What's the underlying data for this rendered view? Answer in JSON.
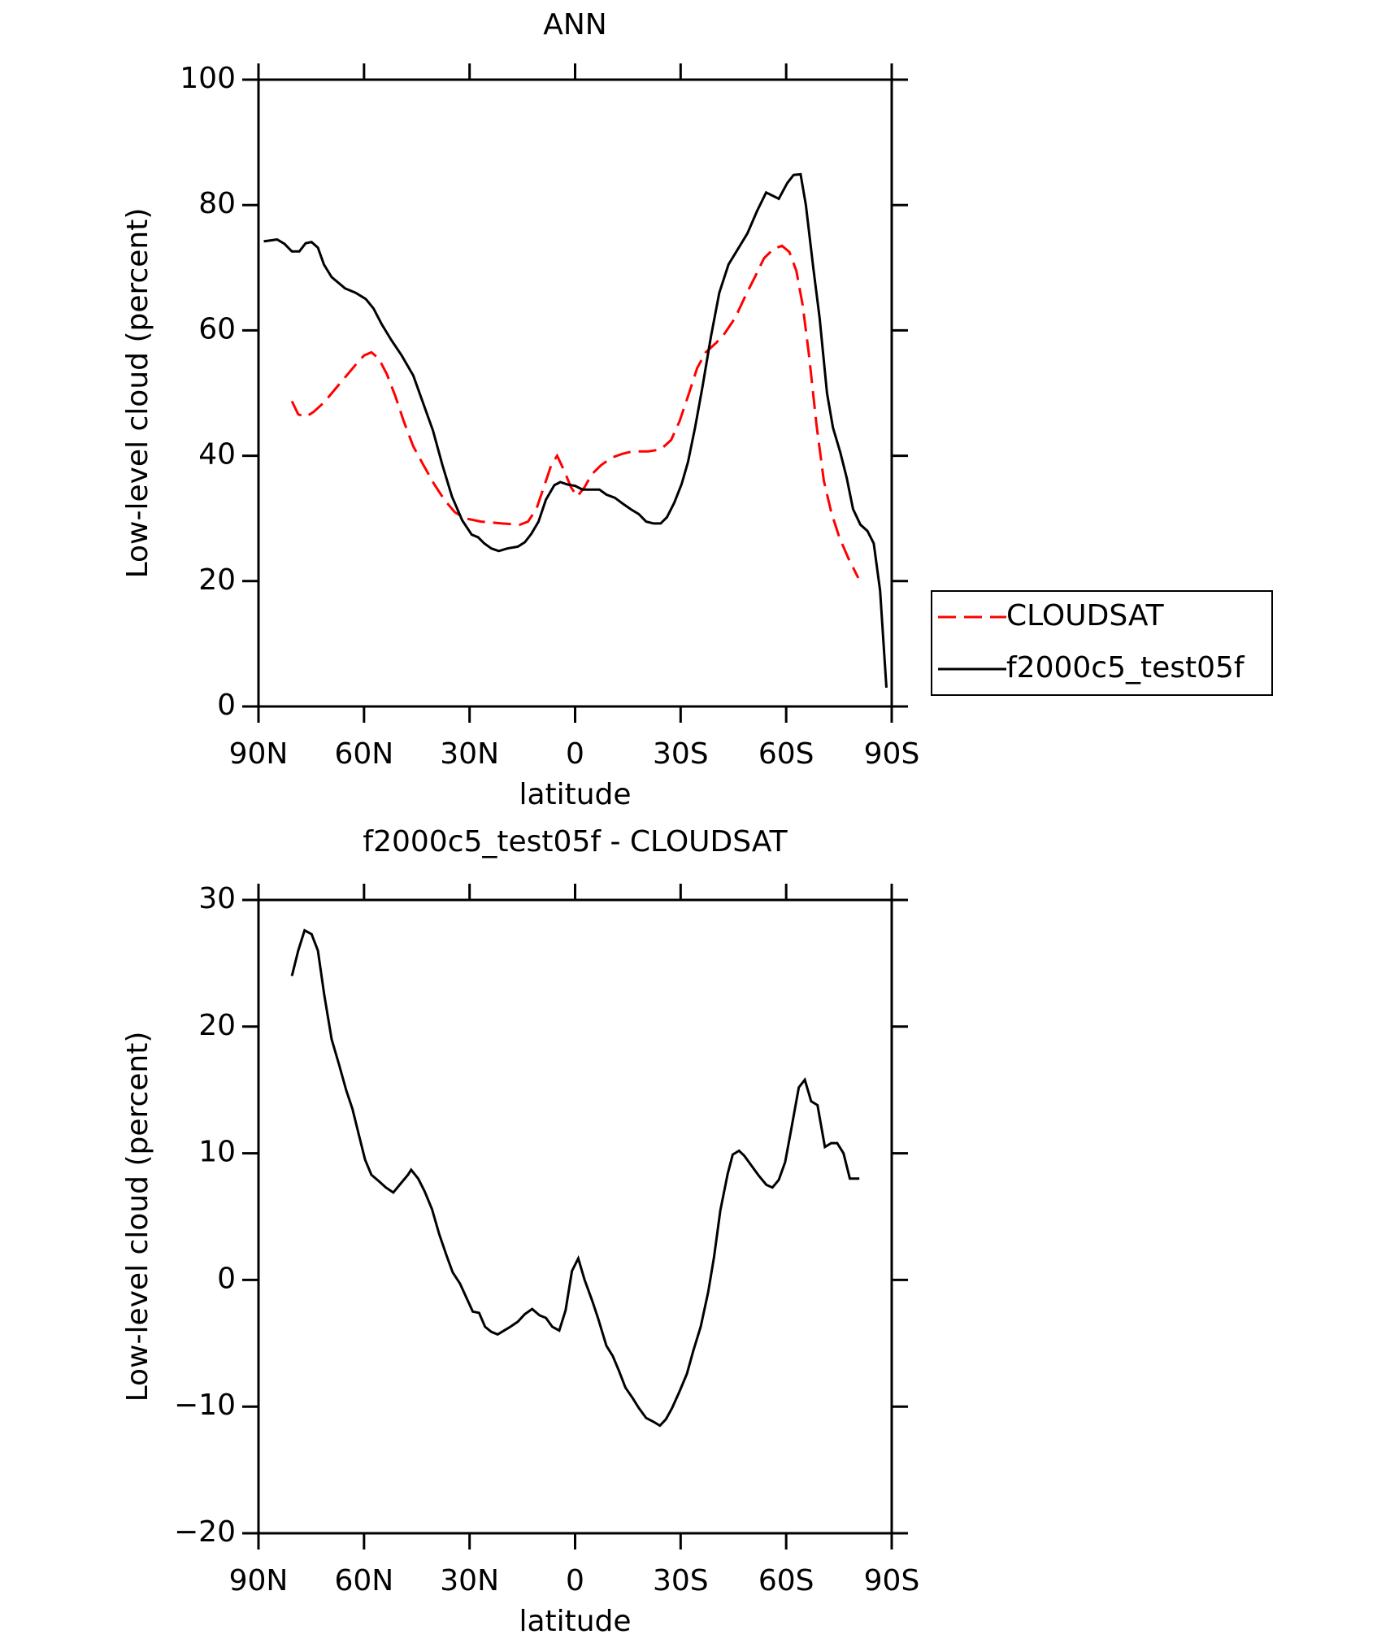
{
  "chart_data": [
    {
      "type": "line",
      "title": "ANN",
      "x_label": "latitude",
      "y_label": "Low-level cloud (percent)",
      "xlim": [
        90,
        -90
      ],
      "ylim": [
        0,
        100
      ],
      "xticks": [
        {
          "value": 90,
          "label": "90N"
        },
        {
          "value": 60,
          "label": "60N"
        },
        {
          "value": 30,
          "label": "30N"
        },
        0,
        {
          "value": -30,
          "label": "30S"
        },
        {
          "value": -60,
          "label": "60S"
        },
        {
          "value": -90,
          "label": "90S"
        }
      ],
      "yticks": [
        0,
        20,
        40,
        60,
        80,
        100
      ],
      "legend": "right",
      "series": [
        {
          "name": "CLOUDSAT",
          "color": "#ff0000",
          "dash": true,
          "x": [
            80.5,
            78.7,
            76.6,
            74.3,
            71.4,
            68.4,
            65.4,
            62.4,
            60,
            57.9,
            55.8,
            53.5,
            51.1,
            48.7,
            46,
            43.1,
            40.1,
            37.2,
            34.2,
            31.2,
            26.7,
            20.8,
            15.7,
            13.4,
            11,
            8.9,
            6.8,
            5.1,
            3,
            1.2,
            -0.6,
            -2.7,
            -4.7,
            -7.4,
            -10.4,
            -13.4,
            -16.3,
            -20.8,
            -24.3,
            -27.3,
            -29.7,
            -32.1,
            -34.7,
            -37.1,
            -40.1,
            -42.5,
            -45.5,
            -48.4,
            -51.1,
            -53.7,
            -56.4,
            -58.8,
            -60.9,
            -62.9,
            -64.7,
            -66.5,
            -68.6,
            -70.7,
            -72.8,
            -75.1,
            -77.8,
            -80.5
          ],
          "values": [
            48.7,
            46.6,
            46.2,
            47,
            48.5,
            50.5,
            52.5,
            54.5,
            56,
            56.5,
            55.5,
            53,
            49.5,
            45.5,
            41.5,
            38.5,
            35.5,
            33,
            31,
            30,
            29.5,
            29.2,
            29,
            29.5,
            31.5,
            35,
            38.5,
            40,
            37.5,
            35,
            33.5,
            35,
            37,
            38.5,
            39.7,
            40.3,
            40.7,
            40.7,
            41,
            42.5,
            45.5,
            49.5,
            54,
            56.5,
            58,
            59.5,
            62,
            65.5,
            68.5,
            71.5,
            73,
            73.5,
            72.5,
            69.5,
            64,
            56,
            45,
            36,
            31,
            27,
            23.5,
            20.5
          ]
        },
        {
          "name": "f2000c5_test05f",
          "color": "#000000",
          "dash": false,
          "x": [
            88.5,
            84.7,
            82.6,
            80.5,
            78.4,
            76.6,
            74.9,
            73.1,
            71.4,
            69.2,
            65.4,
            62.4,
            59.5,
            57.3,
            55,
            52.3,
            49.3,
            46,
            43.4,
            40.4,
            37.7,
            35,
            32.1,
            29.4,
            27.6,
            25.8,
            23.8,
            21.7,
            19.3,
            16.3,
            14.3,
            12.5,
            10.4,
            8.3,
            5.9,
            4.2,
            2.1,
            0,
            -2.1,
            -4.5,
            -6.9,
            -8.9,
            -11.3,
            -13.7,
            -16,
            -18.1,
            -20.2,
            -22.3,
            -24.3,
            -26.1,
            -28.2,
            -30.3,
            -32.1,
            -34.1,
            -36.2,
            -38.6,
            -41,
            -43.6,
            -46.3,
            -49,
            -51.7,
            -54.3,
            -57.9,
            -60.3,
            -62.1,
            -64.1,
            -65.6,
            -67.7,
            -69.5,
            -71.6,
            -73.3,
            -75.4,
            -77.2,
            -79,
            -81.1,
            -83.1,
            -84.9,
            -86.7,
            -88.5
          ],
          "values": [
            74.2,
            74.5,
            73.8,
            72.6,
            72.6,
            73.9,
            74.1,
            73.2,
            70.5,
            68.5,
            66.7,
            66,
            65,
            63.5,
            61,
            58.5,
            56,
            52.8,
            48.7,
            44,
            38.5,
            33.5,
            29.7,
            27.4,
            27,
            26,
            25.2,
            24.8,
            25.2,
            25.5,
            26.2,
            27.5,
            29.5,
            33,
            35.3,
            35.8,
            35.4,
            35.2,
            34.6,
            34.6,
            34.6,
            33.8,
            33.3,
            32.3,
            31.4,
            30.7,
            29.5,
            29.2,
            29.2,
            30.2,
            32.5,
            35.5,
            39,
            44.5,
            51,
            59,
            66,
            70.5,
            73,
            75.5,
            79,
            82,
            81,
            83.5,
            84.8,
            84.9,
            80,
            70,
            62,
            50,
            44.5,
            40.5,
            36.5,
            31.5,
            29,
            28,
            26,
            18.5,
            3
          ]
        }
      ]
    },
    {
      "type": "line",
      "title": "f2000c5_test05f - CLOUDSAT",
      "x_label": "latitude",
      "y_label": "Low-level cloud (percent)",
      "xlim": [
        90,
        -90
      ],
      "ylim": [
        -20,
        30
      ],
      "xticks": [
        {
          "value": 90,
          "label": "90N"
        },
        {
          "value": 60,
          "label": "60N"
        },
        {
          "value": 30,
          "label": "30N"
        },
        0,
        {
          "value": -30,
          "label": "30S"
        },
        {
          "value": -60,
          "label": "60S"
        },
        {
          "value": -90,
          "label": "90S"
        }
      ],
      "yticks": [
        {
          "value": -20,
          "label": "−20"
        },
        {
          "value": -10,
          "label": "−10"
        },
        0,
        10,
        20,
        30
      ],
      "series": [
        {
          "color": "#000000",
          "dash": false,
          "x": [
            80.5,
            78.7,
            76.9,
            74.9,
            73.1,
            71.3,
            69.2,
            67.1,
            65.1,
            63.3,
            61.5,
            59.7,
            57.9,
            55.8,
            53.8,
            51.7,
            49.6,
            47.5,
            46.6,
            44.6,
            42.8,
            40.7,
            38.6,
            36.5,
            34.8,
            32.7,
            30.9,
            29.1,
            27.3,
            25.6,
            23.8,
            22,
            20.2,
            18.4,
            16.3,
            14.3,
            12.2,
            10.1,
            8.3,
            6.5,
            4.5,
            2.7,
            0.9,
            -0.9,
            -2.7,
            -4.8,
            -6.5,
            -8.9,
            -10.7,
            -12.5,
            -14.3,
            -16.3,
            -18.1,
            -20.2,
            -22.3,
            -24.1,
            -25.8,
            -27.6,
            -29.7,
            -31.8,
            -33.6,
            -35.7,
            -37.8,
            -39.5,
            -41.3,
            -43.4,
            -44.8,
            -46.6,
            -48.1,
            -50.2,
            -52.3,
            -54.4,
            -56.1,
            -57.9,
            -59.7,
            -61.5,
            -63.6,
            -65.3,
            -67.1,
            -68.9,
            -71,
            -72.8,
            -74.5,
            -76.3,
            -78.1,
            -80.8
          ],
          "values": [
            24,
            26,
            27.6,
            27.3,
            26,
            22.5,
            19,
            17,
            15,
            13.5,
            11.5,
            9.5,
            8.3,
            7.8,
            7.3,
            6.9,
            7.6,
            8.3,
            8.7,
            8,
            7,
            5.6,
            3.6,
            1.9,
            0.6,
            -0.3,
            -1.4,
            -2.5,
            -2.6,
            -3.7,
            -4.1,
            -4.3,
            -4,
            -3.7,
            -3.3,
            -2.7,
            -2.3,
            -2.8,
            -3,
            -3.7,
            -4,
            -2.4,
            0.7,
            1.7,
            0,
            -1.6,
            -3,
            -5.2,
            -6,
            -7.2,
            -8.5,
            -9.3,
            -10.1,
            -10.9,
            -11.2,
            -11.5,
            -11,
            -10.1,
            -8.8,
            -7.4,
            -5.6,
            -3.7,
            -1,
            1.8,
            5.5,
            8.4,
            9.9,
            10.2,
            9.8,
            9,
            8.2,
            7.5,
            7.3,
            7.9,
            9.3,
            12,
            15.2,
            15.8,
            14.1,
            13.8,
            10.5,
            10.8,
            10.8,
            10,
            8,
            8
          ]
        }
      ]
    }
  ]
}
